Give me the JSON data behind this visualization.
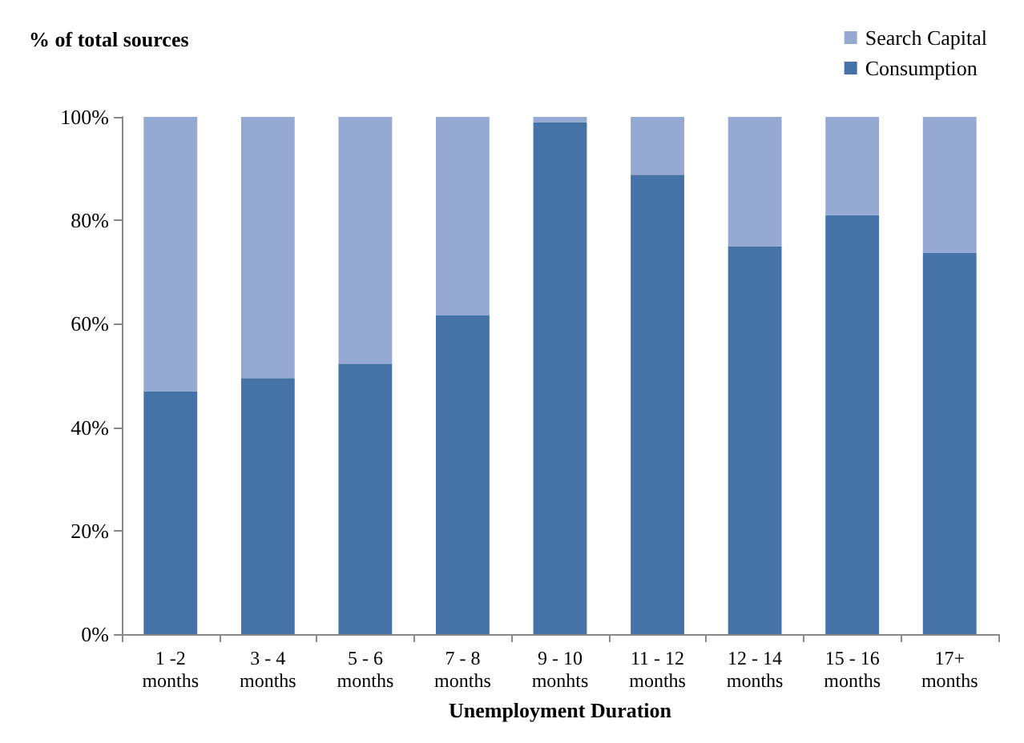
{
  "chart_data": {
    "type": "bar",
    "stacked": true,
    "ylabel": "% of total sources",
    "xlabel": "Unemployment Duration",
    "categories": [
      "1 -2\nmonths",
      "3 - 4\nmonths",
      "5 - 6\nmonths",
      "7 - 8\nmonths",
      "9 - 10\nmonhts",
      "11 - 12\nmonths",
      "12 - 14\nmonths",
      "15 - 16\nmonths",
      "17+\nmonths"
    ],
    "series": [
      {
        "name": "Consumption",
        "color": "#4572a7",
        "values": [
          47,
          49.5,
          52.3,
          61.6,
          99,
          88.8,
          75,
          81,
          73.7
        ]
      },
      {
        "name": "Search Capital",
        "color": "#95a9d3",
        "values": [
          53,
          50.5,
          47.7,
          38.4,
          1,
          11.2,
          25,
          19,
          26.3
        ]
      }
    ],
    "ylim": [
      0,
      100
    ],
    "yticks": [
      {
        "value": 0,
        "label": "0%"
      },
      {
        "value": 20,
        "label": "20%"
      },
      {
        "value": 40,
        "label": "40%"
      },
      {
        "value": 60,
        "label": "60%"
      },
      {
        "value": 80,
        "label": "80%"
      },
      {
        "value": 100,
        "label": "100%"
      }
    ],
    "grid": false,
    "legend": "top right"
  }
}
